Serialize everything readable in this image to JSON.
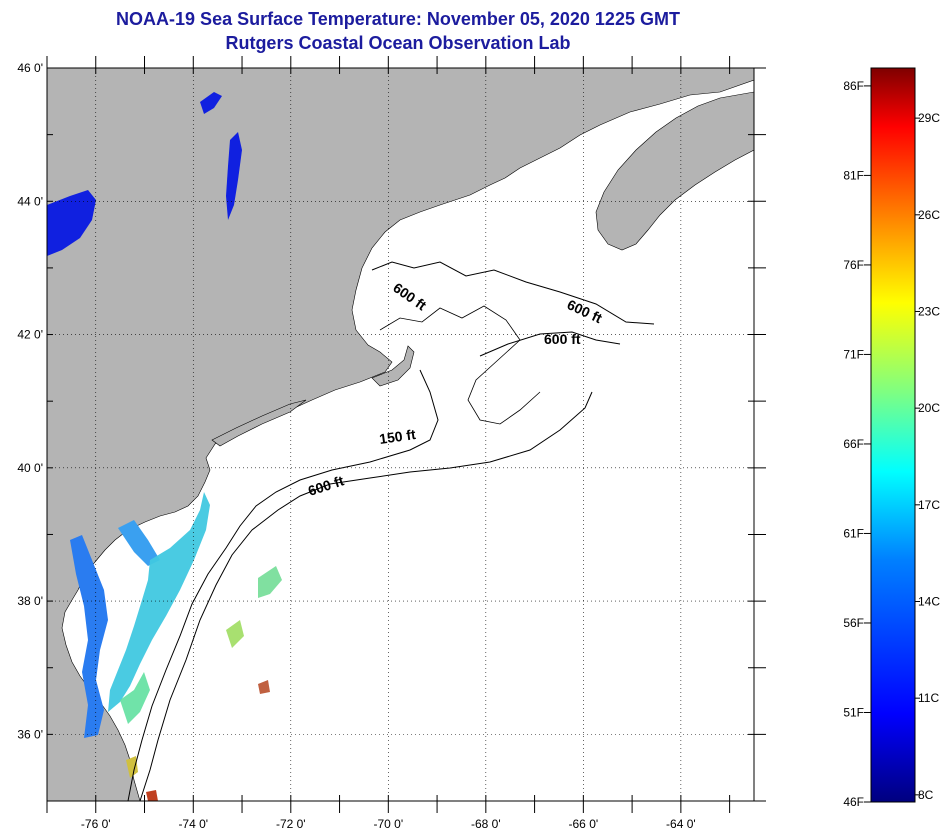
{
  "title_line1": "NOAA-19 Sea Surface Temperature:  November 05, 2020 1225 GMT",
  "title_line2": "Rutgers Coastal Ocean Observation Lab",
  "lat_labels": [
    "46 0'",
    "44 0'",
    "42 0'",
    "40 0'",
    "38 0'",
    "36 0'"
  ],
  "lat_values": [
    46,
    44,
    42,
    40,
    38,
    36
  ],
  "lon_labels": [
    "-76 0'",
    "-74 0'",
    "-72 0'",
    "-70 0'",
    "-68 0'",
    "-66 0'",
    "-64 0'"
  ],
  "lon_values": [
    -76,
    -74,
    -72,
    -70,
    -68,
    -66,
    -64
  ],
  "map_extent": {
    "lon_min": -77,
    "lon_max": -62.5,
    "lat_min": 35,
    "lat_max": 46
  },
  "contours": [
    {
      "label": "600 ft"
    },
    {
      "label": "600 ft"
    },
    {
      "label": "600 ft"
    },
    {
      "label": "150 ft"
    },
    {
      "label": "600 ft"
    }
  ],
  "colorbar": {
    "fahrenheit_labels": [
      "86F",
      "81F",
      "76F",
      "71F",
      "66F",
      "61F",
      "56F",
      "51F",
      "46F"
    ],
    "celsius_labels": [
      "29C",
      "26C",
      "23C",
      "20C",
      "17C",
      "14C",
      "11C",
      "8C"
    ],
    "range_f": [
      46,
      87
    ],
    "colors": [
      "#00007f",
      "#0000ff",
      "#0080ff",
      "#00ffff",
      "#80ff80",
      "#ffff00",
      "#ff8000",
      "#ff0000",
      "#7f0000"
    ]
  },
  "colors": {
    "land": "#b4b4b4",
    "ocean": "#ffffff",
    "title": "#1c1c9e",
    "lakes": "#1020e0"
  }
}
